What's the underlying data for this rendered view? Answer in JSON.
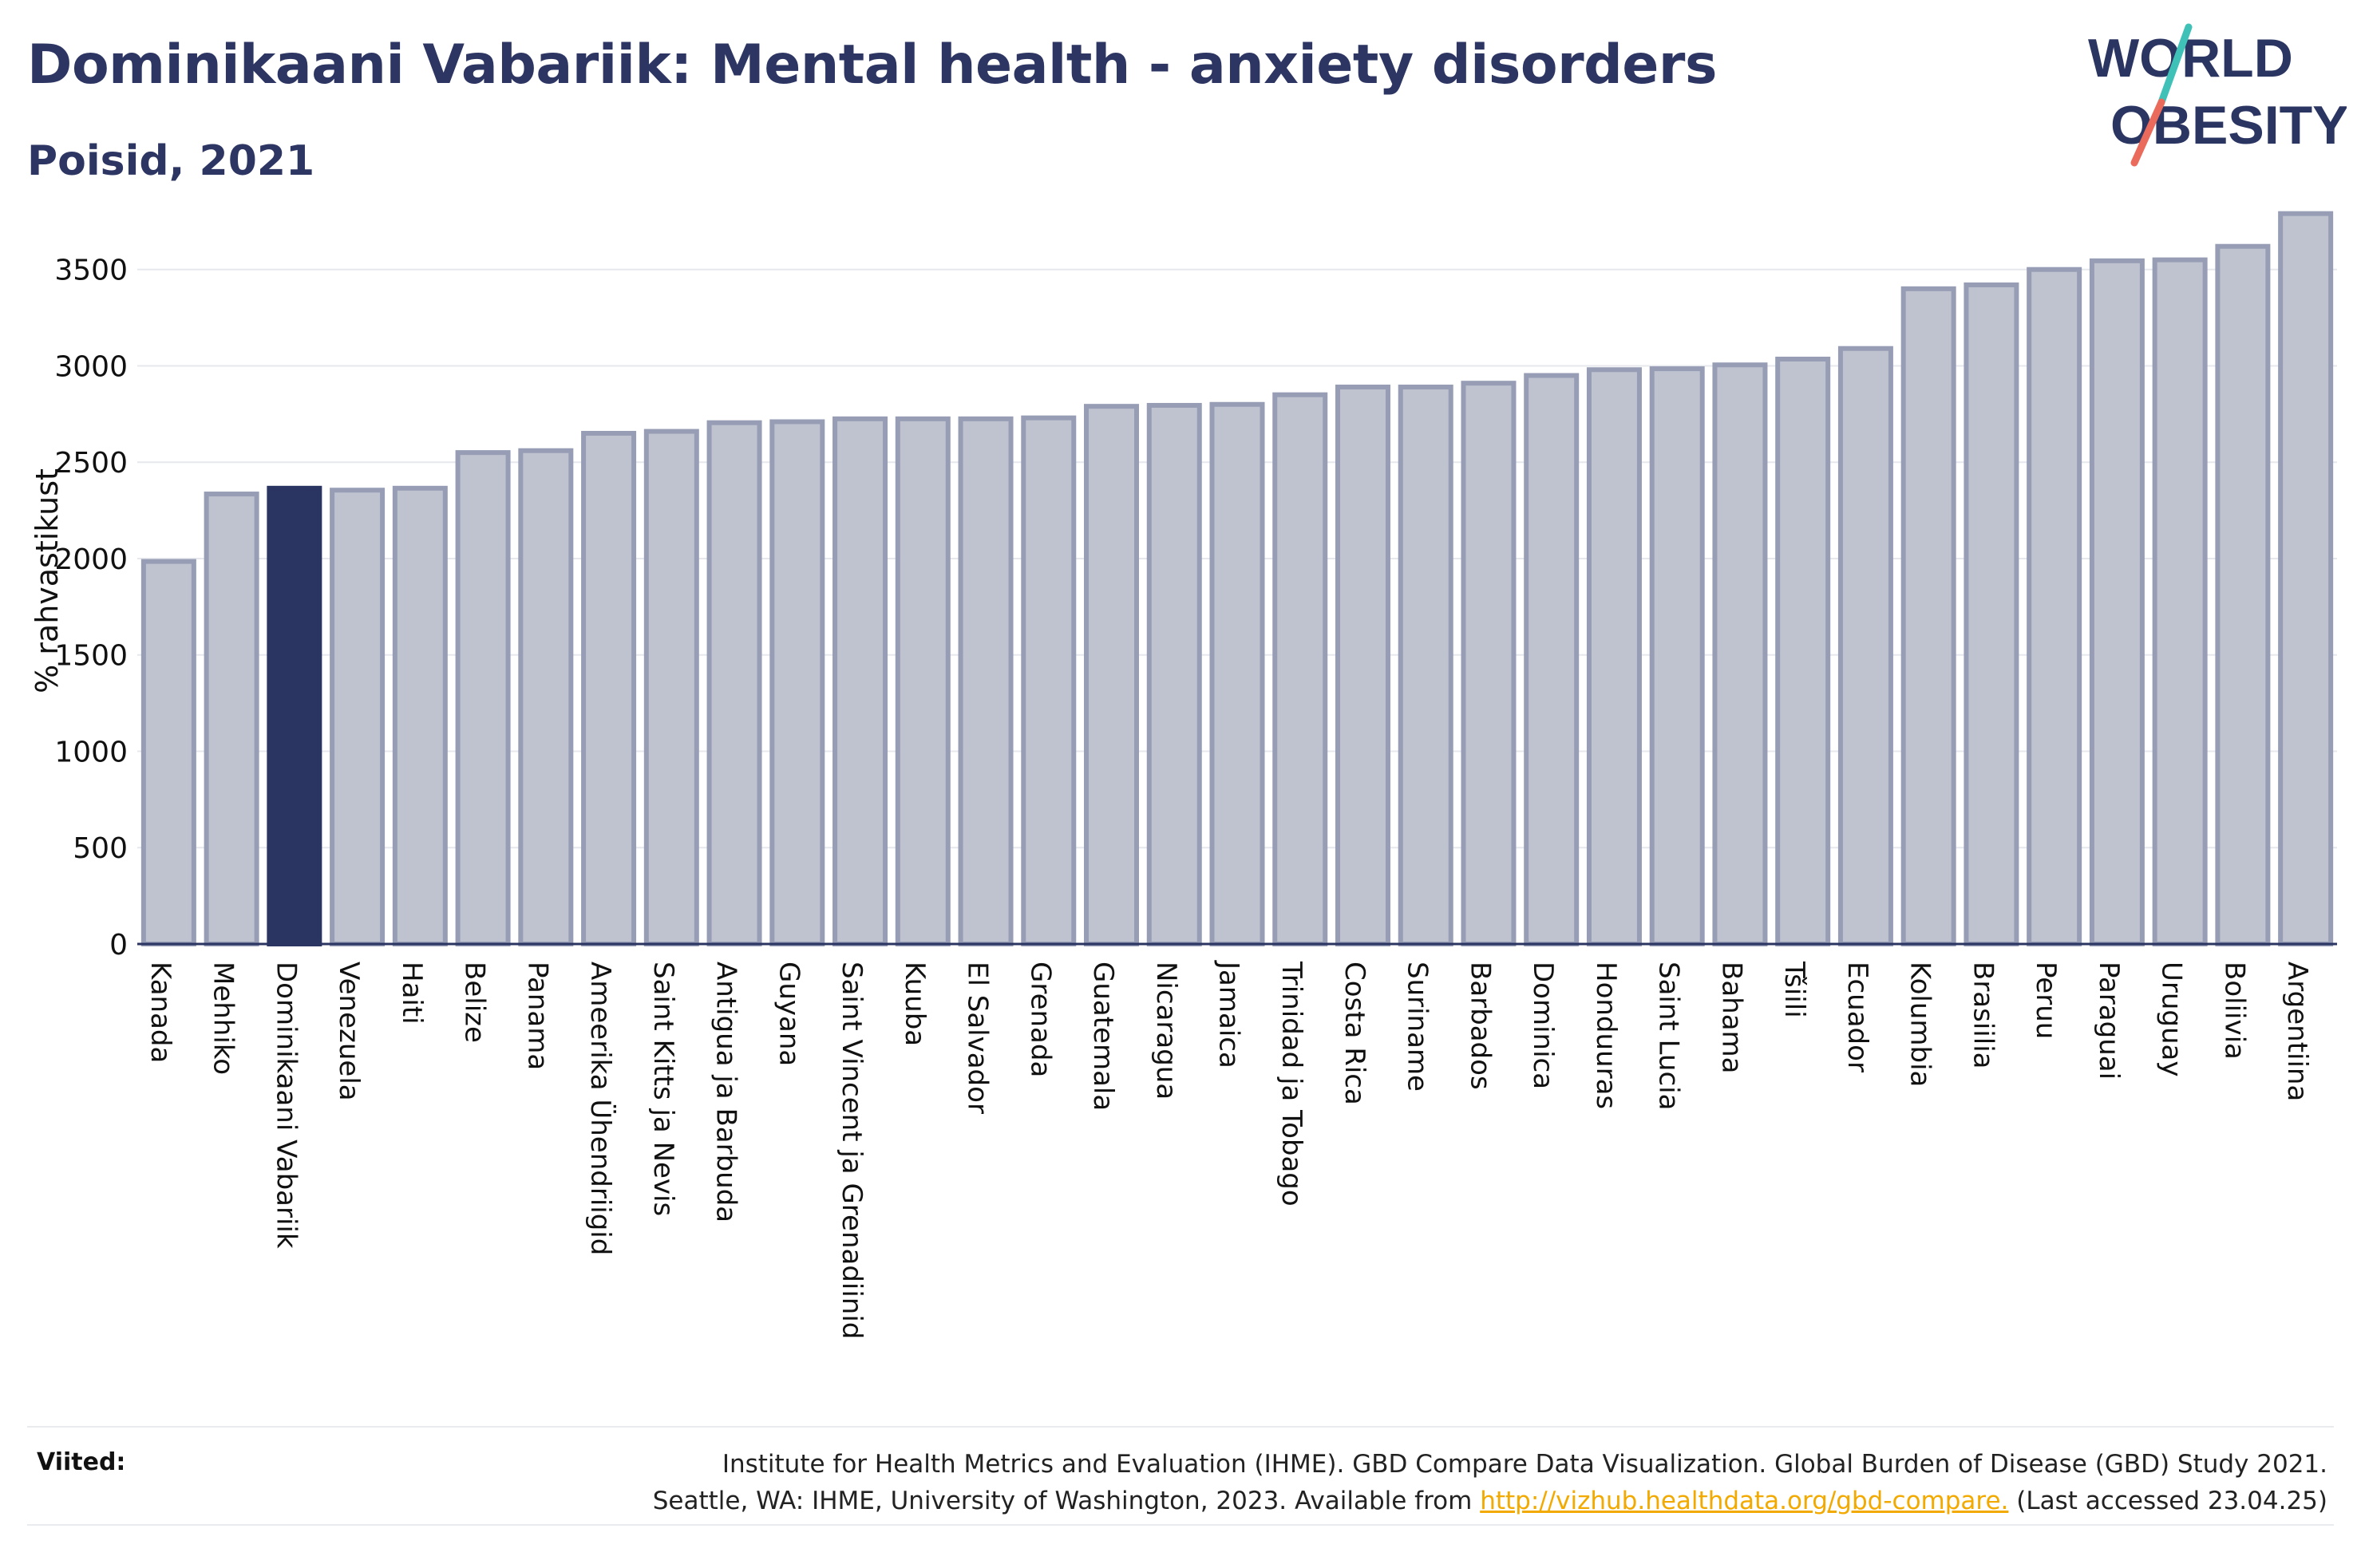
{
  "header": {
    "title": "Dominikaani Vabariik: Mental health - anxiety disorders",
    "subtitle": "Poisid, 2021"
  },
  "logo": {
    "line1": "WORLD",
    "line2": "OBESITY"
  },
  "colors": {
    "title": "#2d3663",
    "bar_default_fill": "#bfc2cf",
    "bar_default_stroke": "#979db5",
    "bar_highlight": "#2b3562",
    "grid": "#e6e8ee",
    "axis": "#2b3562",
    "logo_teal": "#3fc1b8",
    "logo_coral": "#ea6b5c",
    "link": "#f2a900"
  },
  "chart_data": {
    "type": "bar",
    "title": "Dominikaani Vabariik: Mental health - anxiety disorders",
    "subtitle": "Poisid, 2021",
    "xlabel": "",
    "ylabel": "% rahvastikust",
    "ylim": [
      0,
      3850
    ],
    "yticks": [
      0,
      500,
      1000,
      1500,
      2000,
      2500,
      3000,
      3500
    ],
    "grid": true,
    "highlight": "Dominikaani Vabariik",
    "categories": [
      "Kanada",
      "Mehhiko",
      "Dominikaani Vabariik",
      "Venezuela",
      "Haiti",
      "Belize",
      "Panama",
      "Ameerika Ühendriigid",
      "Saint Kitts ja Nevis",
      "Antigua ja Barbuda",
      "Guyana",
      "Saint Vincent ja Grenadiinid",
      "Kuuba",
      "El Salvador",
      "Grenada",
      "Guatemala",
      "Nicaragua",
      "Jamaica",
      "Trinidad ja Tobago",
      "Costa Rica",
      "Suriname",
      "Barbados",
      "Dominica",
      "Honduuras",
      "Saint Lucia",
      "Bahama",
      "Tšiili",
      "Ecuador",
      "Kolumbia",
      "Brasiilia",
      "Peruu",
      "Paraguai",
      "Uruguay",
      "Boliivia",
      "Argentiina"
    ],
    "values": [
      1985,
      2335,
      2365,
      2355,
      2365,
      2550,
      2560,
      2650,
      2660,
      2705,
      2710,
      2725,
      2725,
      2725,
      2730,
      2790,
      2795,
      2800,
      2850,
      2890,
      2890,
      2910,
      2950,
      2980,
      2985,
      3005,
      3035,
      3090,
      3400,
      3420,
      3500,
      3545,
      3550,
      3620,
      3790
    ]
  },
  "references": {
    "label": "Viited:",
    "line1": "Institute for Health Metrics and Evaluation (IHME). GBD Compare Data Visualization. Global Burden of Disease (GBD) Study 2021.",
    "line2_prefix": "Seattle, WA: IHME, University of Washington, 2023. Available from",
    "link_text": "http://vizhub.healthdata.org/gbd-compare.",
    "line2_suffix": "(Last accessed 23.04.25)"
  }
}
